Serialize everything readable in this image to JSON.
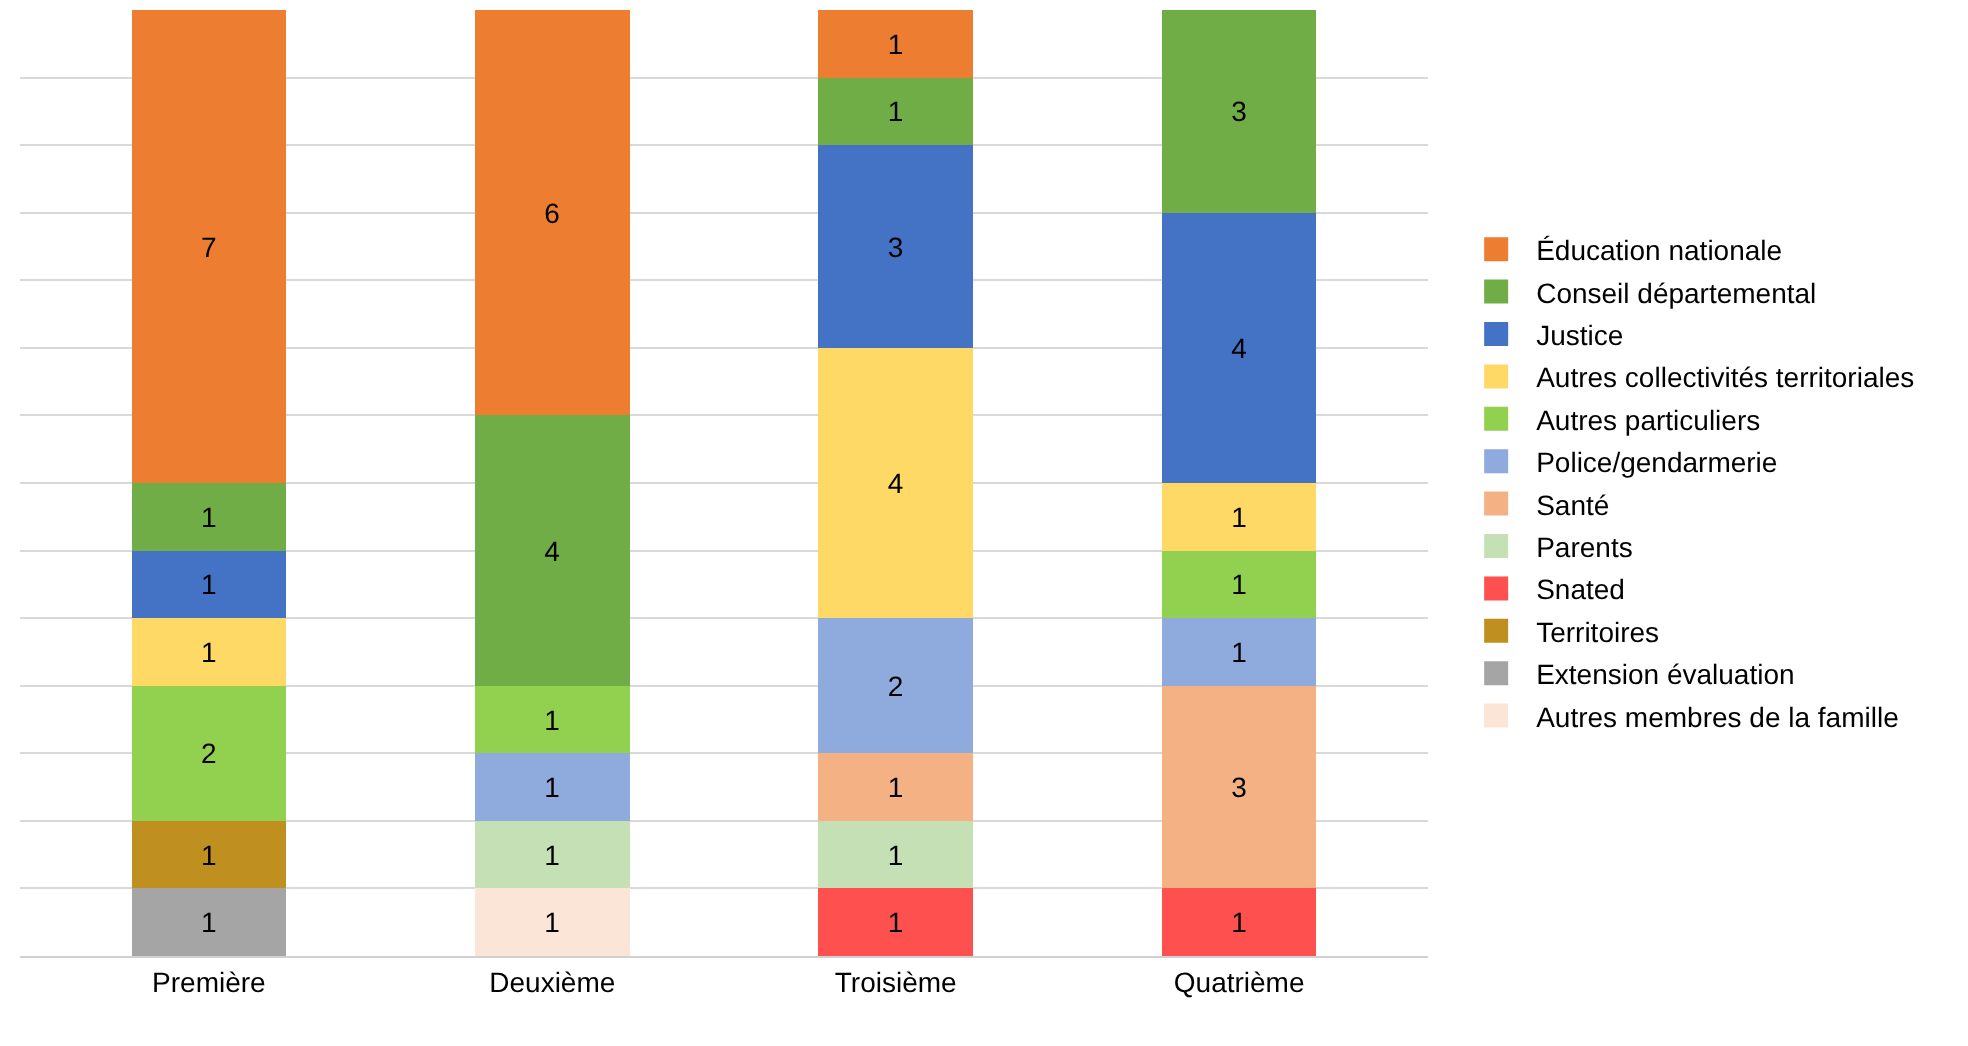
{
  "chart_data": {
    "type": "bar",
    "stacked": true,
    "data_labels": true,
    "categories": [
      "Première",
      "Deuxième",
      "Troisième",
      "Quatrième"
    ],
    "series": [
      {
        "name": "Autres membres de la famille",
        "color": "#fbe5d6",
        "values": [
          null,
          1,
          null,
          null
        ]
      },
      {
        "name": "Extension évaluation",
        "color": "#a5a5a5",
        "values": [
          1,
          null,
          null,
          null
        ]
      },
      {
        "name": "Territoires",
        "color": "#bf9020",
        "values": [
          1,
          null,
          null,
          null
        ]
      },
      {
        "name": "Snated",
        "color": "#ff5050",
        "values": [
          null,
          null,
          1,
          1
        ]
      },
      {
        "name": "Parents",
        "color": "#c5e0b4",
        "values": [
          null,
          1,
          1,
          null
        ]
      },
      {
        "name": "Santé",
        "color": "#f4b183",
        "values": [
          null,
          null,
          1,
          3
        ]
      },
      {
        "name": "Police/gendarmerie",
        "color": "#8faadc",
        "values": [
          null,
          1,
          2,
          1
        ]
      },
      {
        "name": "Autres particuliers",
        "color": "#92d050",
        "values": [
          2,
          1,
          null,
          1
        ]
      },
      {
        "name": "Autres collectivités territoriales",
        "color": "#ffd966",
        "values": [
          1,
          null,
          4,
          1
        ]
      },
      {
        "name": "Justice",
        "color": "#4472c4",
        "values": [
          1,
          null,
          3,
          4
        ]
      },
      {
        "name": "Conseil départemental",
        "color": "#70ad47",
        "values": [
          1,
          4,
          1,
          3
        ]
      },
      {
        "name": "Éducation nationale",
        "color": "#ed7d31",
        "values": [
          7,
          6,
          1,
          null
        ]
      }
    ],
    "ylim": [
      0,
      14
    ],
    "yticks": [
      {
        "value": 0,
        "label": null
      },
      {
        "value": 1,
        "label": null
      },
      {
        "value": 2,
        "label": null
      },
      {
        "value": 3,
        "label": null
      },
      {
        "value": 4,
        "label": null
      },
      {
        "value": 5,
        "label": null
      },
      {
        "value": 6,
        "label": null
      },
      {
        "value": 7,
        "label": null
      },
      {
        "value": 8,
        "label": null
      },
      {
        "value": 9,
        "label": null
      },
      {
        "value": 10,
        "label": null
      },
      {
        "value": 11,
        "label": null
      },
      {
        "value": 12,
        "label": null
      },
      {
        "value": 13,
        "label": null
      }
    ],
    "grid": "y",
    "tick_labels": "x",
    "legend": "right"
  }
}
